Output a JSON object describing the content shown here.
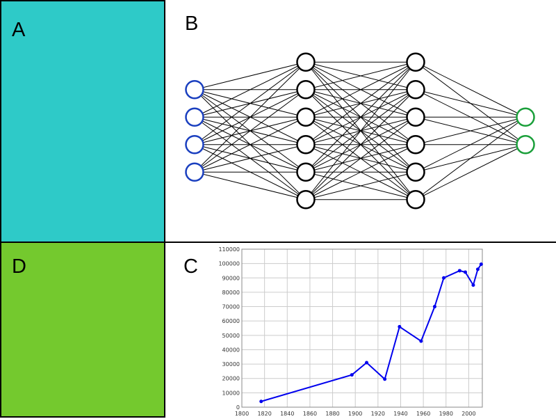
{
  "panels": {
    "a": {
      "label": "A",
      "color": "#2ecac8"
    },
    "b": {
      "label": "B"
    },
    "c": {
      "label": "C"
    },
    "d": {
      "label": "D",
      "color": "#74c92e"
    }
  },
  "network": {
    "layers": [
      {
        "count": 4,
        "color": "#1a3fbf"
      },
      {
        "count": 6,
        "color": "#000000"
      },
      {
        "count": 6,
        "color": "#000000"
      },
      {
        "count": 2,
        "color": "#1a9f3a"
      }
    ],
    "edge_color": "#000000"
  },
  "chart_data": {
    "type": "line",
    "series": [
      {
        "color": "#0000ee",
        "x": [
          1817,
          1897,
          1910,
          1926,
          1939,
          1958,
          1970,
          1978,
          1992,
          1997,
          2004,
          2008,
          2011
        ],
        "y": [
          4000,
          22500,
          31000,
          19500,
          56000,
          46000,
          70000,
          90000,
          95000,
          94000,
          85000,
          96000,
          99500
        ]
      }
    ],
    "xlim": [
      1800,
      2012
    ],
    "ylim": [
      0,
      110000
    ],
    "x_ticks": [
      1800,
      1820,
      1840,
      1860,
      1880,
      1900,
      1920,
      1940,
      1960,
      1980,
      2000
    ],
    "y_ticks": [
      0,
      10000,
      20000,
      30000,
      40000,
      50000,
      60000,
      70000,
      80000,
      90000,
      100000,
      110000
    ],
    "grid": true,
    "markers": true
  }
}
